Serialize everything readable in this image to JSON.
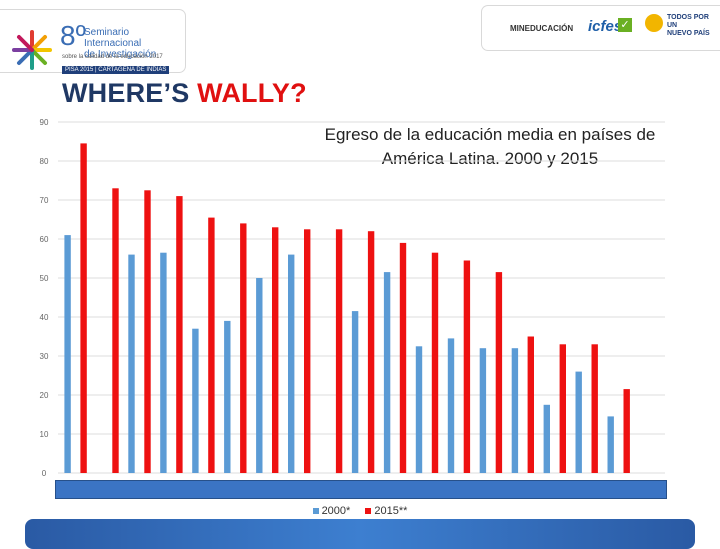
{
  "header": {
    "logo_number": "8º",
    "logo_line1": "Seminario",
    "logo_line2": "Internacional",
    "logo_line3": "de Investigación",
    "logo_line4": "sobre la calidad de la educación 2017",
    "logo_tag": "PISA 2015 | CARTAGENA DE INDIAS",
    "ministry": "MINEDUCACIÓN",
    "icfes": "icfes",
    "country_line1": "TODOS POR UN",
    "country_line2": "NUEVO PAÍS"
  },
  "title": {
    "part1": "WHERE’S ",
    "part2": "WALLY?"
  },
  "chart_data": {
    "type": "bar",
    "title": "Egreso de la educación media en países de América Latina. 2000 y 2015",
    "categories": [
      "",
      "",
      "",
      "",
      "",
      "",
      "",
      "",
      "",
      "",
      "",
      "",
      "",
      "",
      "",
      "",
      "",
      "",
      ""
    ],
    "series": [
      {
        "name": "2000*",
        "color": "#5b9bd5",
        "values": [
          61,
          null,
          56,
          56.5,
          37,
          39,
          50,
          56,
          null,
          41.5,
          51.5,
          32.5,
          34.5,
          32,
          32,
          17.5,
          26,
          14.5,
          null
        ]
      },
      {
        "name": "2015**",
        "color": "#ee1111",
        "values": [
          84.5,
          73,
          72.5,
          71,
          65.5,
          64,
          63,
          62.5,
          62.5,
          62,
          59,
          56.5,
          54.5,
          51.5,
          35,
          33,
          33,
          21.5,
          null
        ]
      }
    ],
    "ylim": [
      0,
      90
    ],
    "yticks": [
      0,
      10,
      20,
      30,
      40,
      50,
      60,
      70,
      80,
      90
    ],
    "grid": true,
    "legend": "bottom"
  }
}
